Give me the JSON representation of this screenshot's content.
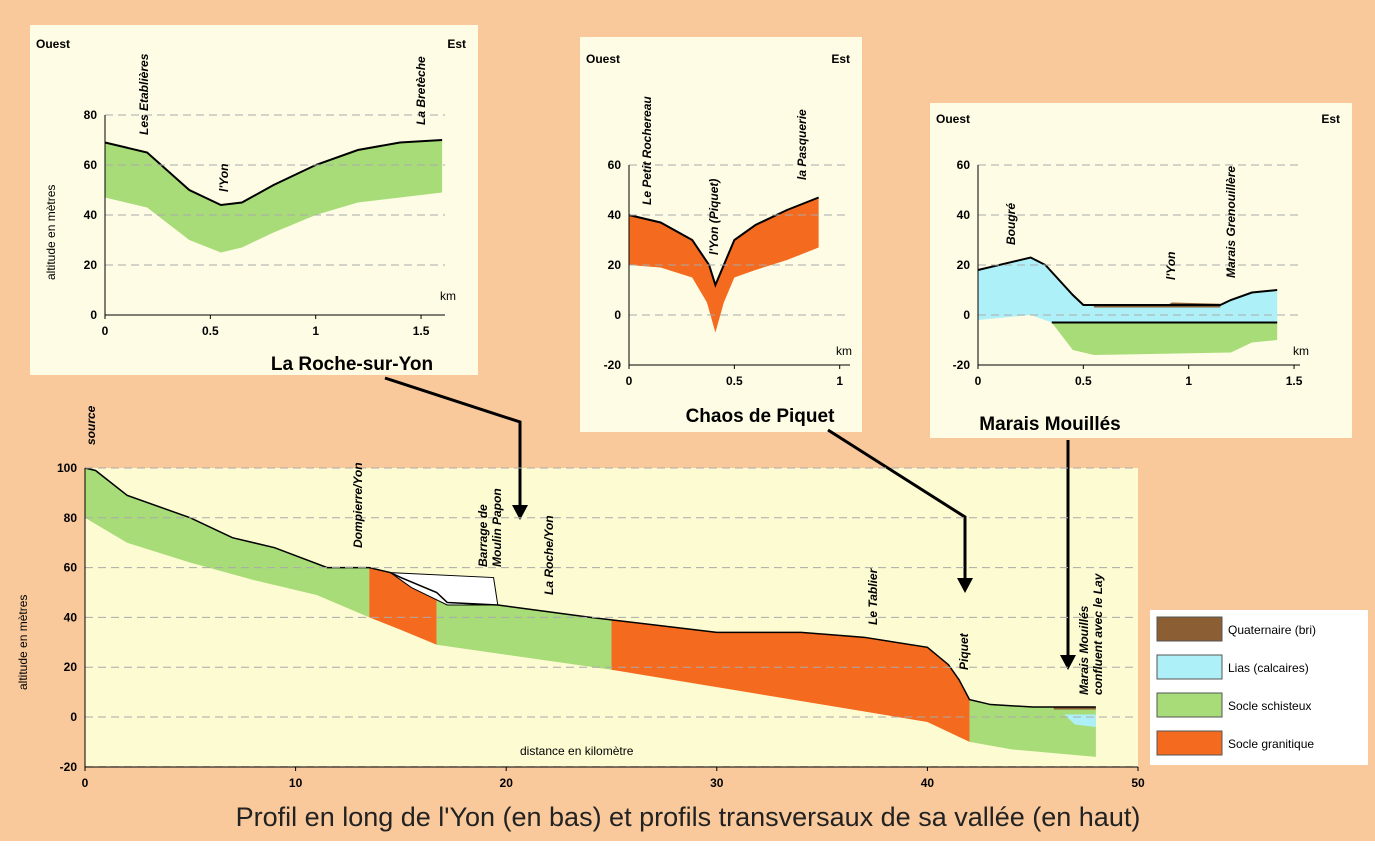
{
  "title": "Profil en long de l'Yon (en bas) et profils transversaux de sa vallée (en haut)",
  "main": {
    "y_label": "altitude en mètres",
    "x_label": "distance en kilomètre",
    "yticks": [
      100,
      80,
      60,
      40,
      20,
      0,
      -20
    ],
    "xticks": [
      0,
      10,
      20,
      30,
      40,
      50
    ],
    "places": [
      [
        "source"
      ],
      [
        "Dompierre/Yon"
      ],
      [
        "Barrage de",
        "Moulin Papon"
      ],
      [
        "La Roche/Yon"
      ],
      [
        "Le Tablier"
      ],
      [
        "Piquet"
      ],
      [
        "Marais Mouillés",
        "confluent avec le Lay"
      ]
    ]
  },
  "legend": [
    {
      "label": "Quaternaire (bri)",
      "color": "#8b5e34"
    },
    {
      "label": "Lias (calcaires)",
      "color": "#aef0f8"
    },
    {
      "label": "Socle schisteux",
      "color": "#a8dc78"
    },
    {
      "label": "Socle granitique",
      "color": "#f46a1e"
    }
  ],
  "panels": [
    {
      "name": "La Roche-sur-Yon",
      "west": "Ouest",
      "east": "Est",
      "y_label": "altitude en mètres",
      "unit": "km",
      "yticks": [
        80,
        60,
        40,
        20,
        0
      ],
      "xticks": [
        0,
        0.5,
        1,
        1.5
      ],
      "places": [
        "Les Etablières",
        "l'Yon",
        "La Bretèche"
      ]
    },
    {
      "name": "Chaos de Piquet",
      "west": "Ouest",
      "east": "Est",
      "unit": "km",
      "yticks": [
        60,
        40,
        20,
        0,
        -20
      ],
      "xticks": [
        0,
        0.5,
        1
      ],
      "places": [
        "Le Petit Rochereau",
        "l'Yon (Piquet)",
        "la Pasquerie"
      ]
    },
    {
      "name": "Marais Mouillés",
      "west": "Ouest",
      "east": "Est",
      "unit": "km",
      "yticks": [
        60,
        40,
        20,
        0,
        -20
      ],
      "xticks": [
        0,
        0.5,
        1,
        1.5
      ],
      "places": [
        "Bougré",
        "l'Yon",
        "Marais Grenouillère"
      ]
    }
  ]
}
